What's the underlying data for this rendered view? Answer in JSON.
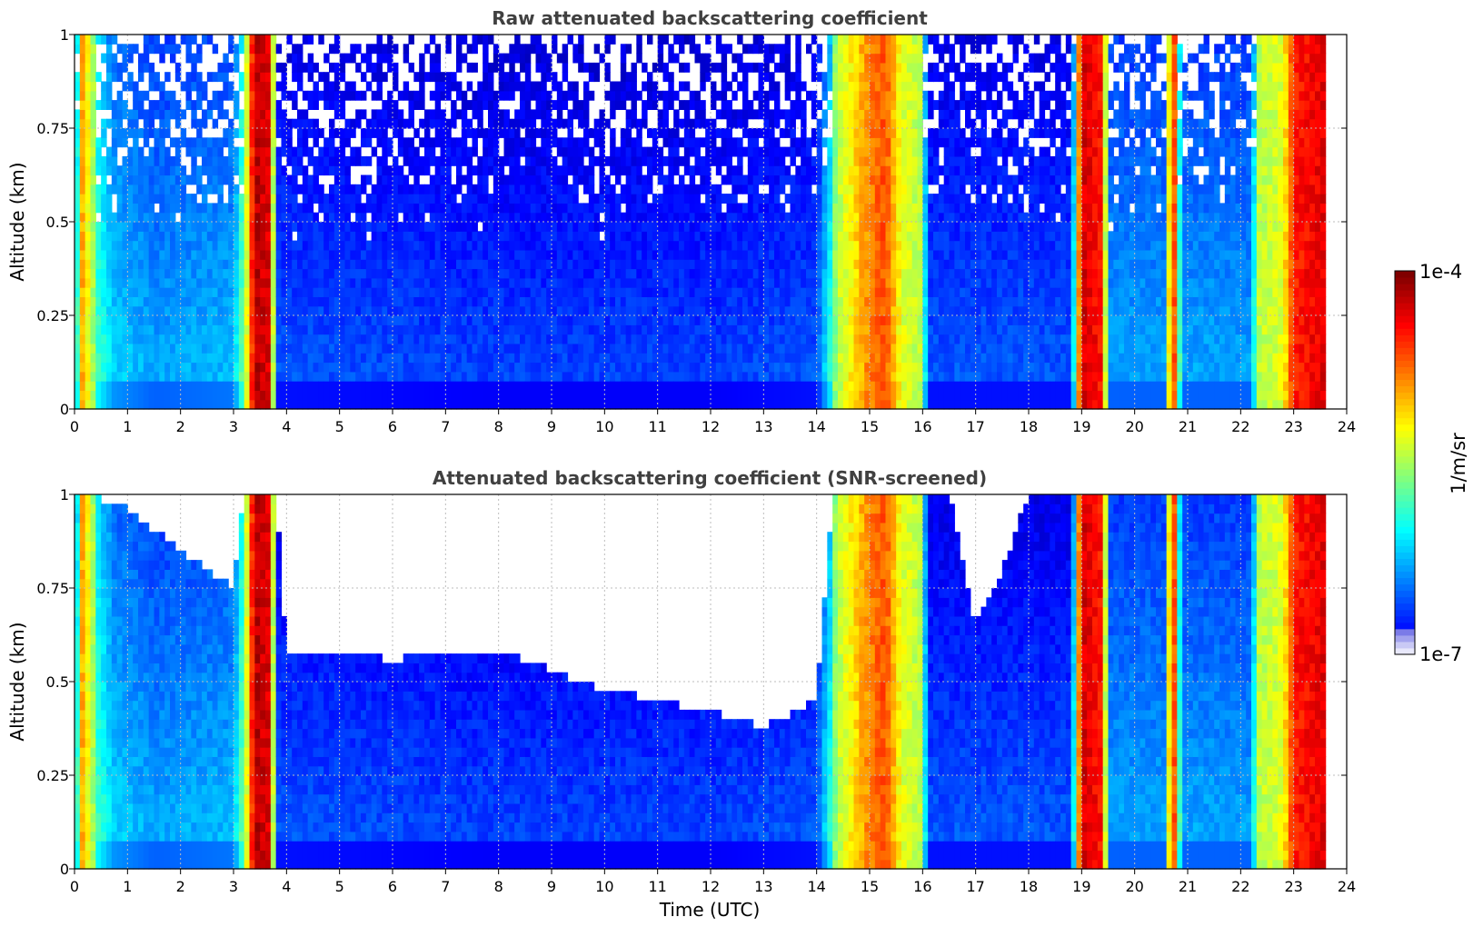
{
  "chart_data": [
    {
      "type": "heatmap",
      "title": "Raw attenuated backscattering coefficient",
      "xlabel": "",
      "ylabel": "Altitude (km)",
      "xlim": [
        0,
        24
      ],
      "ylim": [
        0,
        1
      ],
      "xticks": [
        "0",
        "1",
        "2",
        "3",
        "4",
        "5",
        "6",
        "7",
        "8",
        "9",
        "10",
        "11",
        "12",
        "13",
        "14",
        "15",
        "16",
        "17",
        "18",
        "19",
        "20",
        "21",
        "22",
        "23",
        "24"
      ],
      "yticks": [
        "0",
        "0.25",
        "0.5",
        "0.75",
        "1"
      ],
      "grid": true,
      "screened": false,
      "profile_levels": [
        {
          "t": 0.0,
          "level": 0.35
        },
        {
          "t": 0.15,
          "level": 0.7
        },
        {
          "t": 0.45,
          "level": 0.45
        },
        {
          "t": 0.75,
          "level": 0.35
        },
        {
          "t": 1.5,
          "level": 0.3
        },
        {
          "t": 3.0,
          "level": 0.32
        },
        {
          "t": 3.25,
          "level": 0.6
        },
        {
          "t": 3.4,
          "level": 0.95
        },
        {
          "t": 3.7,
          "level": 0.9
        },
        {
          "t": 3.8,
          "level": 0.22
        },
        {
          "t": 8.0,
          "level": 0.2
        },
        {
          "t": 12.0,
          "level": 0.2
        },
        {
          "t": 14.0,
          "level": 0.22
        },
        {
          "t": 14.4,
          "level": 0.55
        },
        {
          "t": 15.0,
          "level": 0.75
        },
        {
          "t": 15.3,
          "level": 0.8
        },
        {
          "t": 15.6,
          "level": 0.6
        },
        {
          "t": 16.0,
          "level": 0.55
        },
        {
          "t": 16.1,
          "level": 0.22
        },
        {
          "t": 18.8,
          "level": 0.22
        },
        {
          "t": 19.0,
          "level": 0.92
        },
        {
          "t": 19.4,
          "level": 0.85
        },
        {
          "t": 19.5,
          "level": 0.3
        },
        {
          "t": 20.6,
          "level": 0.3
        },
        {
          "t": 20.7,
          "level": 0.95
        },
        {
          "t": 20.9,
          "level": 0.3
        },
        {
          "t": 22.2,
          "level": 0.3
        },
        {
          "t": 22.3,
          "level": 0.55
        },
        {
          "t": 22.8,
          "level": 0.6
        },
        {
          "t": 23.0,
          "level": 0.85
        },
        {
          "t": 23.55,
          "level": 0.9
        },
        {
          "t": 23.6,
          "level": 0.0
        },
        {
          "t": 24.0,
          "level": 0.0
        }
      ]
    },
    {
      "type": "heatmap",
      "title": "Attenuated backscattering coefficient (SNR-screened)",
      "xlabel": "Time (UTC)",
      "ylabel": "Altitude (km)",
      "xlim": [
        0,
        24
      ],
      "ylim": [
        0,
        1
      ],
      "xticks": [
        "0",
        "1",
        "2",
        "3",
        "4",
        "5",
        "6",
        "7",
        "8",
        "9",
        "10",
        "11",
        "12",
        "13",
        "14",
        "15",
        "16",
        "17",
        "18",
        "19",
        "20",
        "21",
        "22",
        "23",
        "24"
      ],
      "yticks": [
        "0",
        "0.25",
        "0.5",
        "0.75",
        "1"
      ],
      "grid": true,
      "screened": true,
      "screen_top_km": [
        {
          "t": 0.0,
          "alt": 1.0
        },
        {
          "t": 0.8,
          "alt": 0.98
        },
        {
          "t": 2.5,
          "alt": 0.8
        },
        {
          "t": 3.0,
          "alt": 0.75
        },
        {
          "t": 3.2,
          "alt": 1.0
        },
        {
          "t": 3.8,
          "alt": 1.0
        },
        {
          "t": 4.0,
          "alt": 0.58
        },
        {
          "t": 6.0,
          "alt": 0.56
        },
        {
          "t": 8.0,
          "alt": 0.58
        },
        {
          "t": 10.0,
          "alt": 0.48
        },
        {
          "t": 12.0,
          "alt": 0.42
        },
        {
          "t": 13.0,
          "alt": 0.38
        },
        {
          "t": 14.0,
          "alt": 0.45
        },
        {
          "t": 14.3,
          "alt": 1.0
        },
        {
          "t": 16.5,
          "alt": 1.0
        },
        {
          "t": 17.0,
          "alt": 0.65
        },
        {
          "t": 17.5,
          "alt": 0.8
        },
        {
          "t": 18.0,
          "alt": 1.0
        },
        {
          "t": 24.0,
          "alt": 1.0
        }
      ]
    }
  ],
  "colorbar": {
    "label": "1/m/sr",
    "max_label": "1e-4",
    "min_label": "1e-7",
    "colormap": "jet"
  }
}
